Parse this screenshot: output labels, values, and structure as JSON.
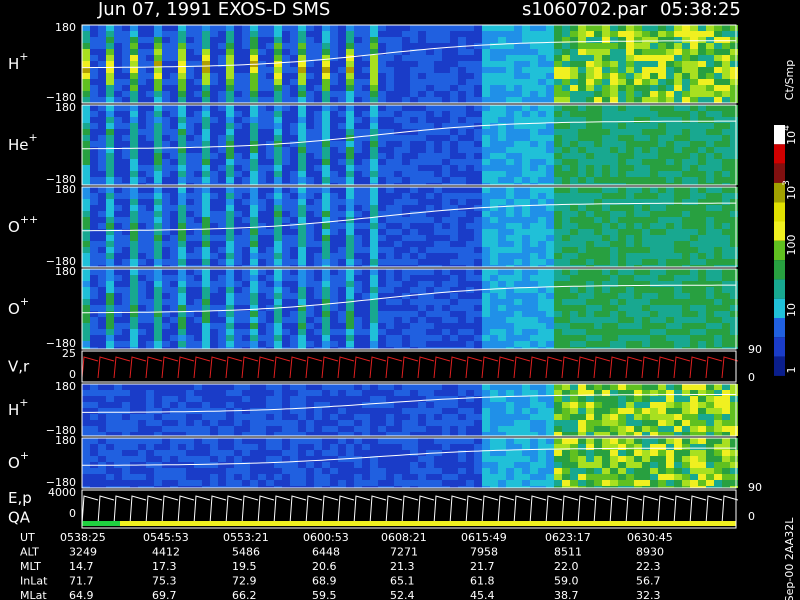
{
  "header": {
    "title": "Jun 07, 1991   EXOS-D SMS",
    "file": "s1060702.par",
    "time": "05:38:25"
  },
  "panels": [
    {
      "label": "H",
      "sup": "+",
      "left": [
        "180",
        "−180"
      ],
      "right": []
    },
    {
      "label": "He",
      "sup": "+",
      "left": [
        "180",
        "−180"
      ],
      "right": []
    },
    {
      "label": "O",
      "sup": "++",
      "left": [
        "180",
        "−180"
      ],
      "right": []
    },
    {
      "label": "O",
      "sup": "+",
      "left": [
        "180",
        "−180"
      ],
      "right": []
    },
    {
      "label": "V,r",
      "left": [
        "25",
        "0"
      ],
      "right": [
        "90",
        "0"
      ]
    },
    {
      "label": "H",
      "sup": "+",
      "left": [
        "180",
        "−180"
      ],
      "right": []
    },
    {
      "label": "O",
      "sup": "+",
      "left": [
        "180",
        "−180"
      ],
      "right": [
        "90"
      ]
    },
    {
      "label": "E,p",
      "label2": "QA",
      "left": [
        "4000",
        "0"
      ],
      "right": [
        "0"
      ]
    }
  ],
  "colorbar": {
    "unit": "Ct/Smp",
    "labels": [
      {
        "base": "10",
        "exp": "4"
      },
      {
        "base": "10",
        "exp": "3"
      },
      "100",
      "10",
      "1"
    ]
  },
  "footer": {
    "rows": [
      {
        "label": "UT",
        "values": [
          "0538:25",
          "0545:53",
          "0553:21",
          "0600:53",
          "0608:21",
          "0615:49",
          "0623:17",
          "0630:45"
        ]
      },
      {
        "label": "ALT",
        "values": [
          "3249",
          "4412",
          "5486",
          "6448",
          "7271",
          "7958",
          "8511",
          "8930"
        ]
      },
      {
        "label": "MLT",
        "values": [
          "14.7",
          "17.3",
          "19.5",
          "20.6",
          "21.3",
          "21.7",
          "22.0",
          "22.3"
        ]
      },
      {
        "label": "InLat",
        "values": [
          "71.7",
          "75.3",
          "72.9",
          "68.9",
          "65.1",
          "61.8",
          "59.0",
          "56.7"
        ]
      },
      {
        "label": "MLat",
        "values": [
          "64.9",
          "69.7",
          "66.2",
          "59.5",
          "52.4",
          "45.4",
          "38.7",
          "32.3"
        ]
      }
    ]
  },
  "stamp": "Sep-00 2AA32L"
}
